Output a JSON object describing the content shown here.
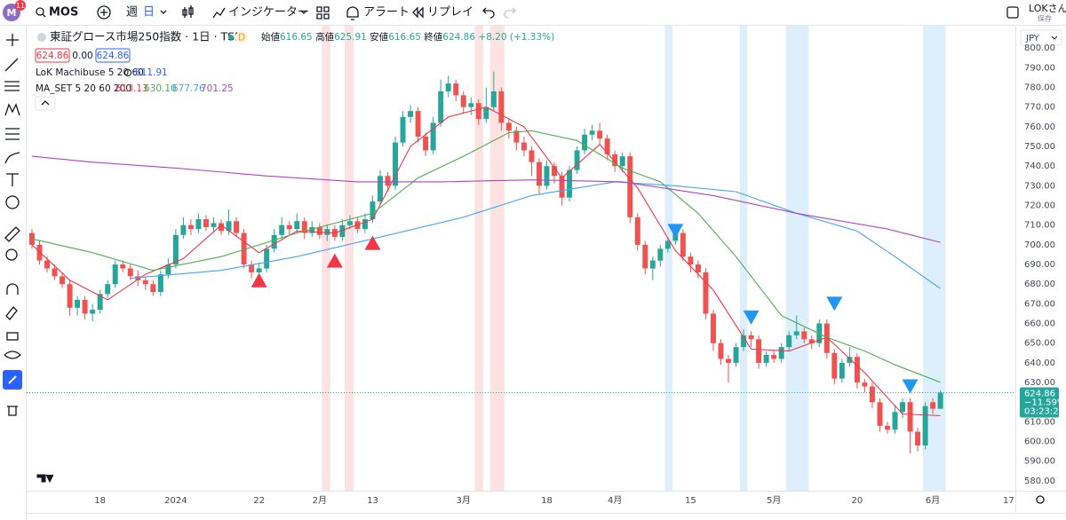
{
  "toolbar": {
    "badge": "11",
    "symbol": "MOS",
    "interval_week": "週",
    "interval_day": "日",
    "indicators": "インジケーター",
    "alert": "アラート",
    "replay": "リプレイ",
    "user": "LOKさん",
    "save": "保存"
  },
  "legend": {
    "title": "東証グロース市場250指数 · 1日 · TSE",
    "flag": "D",
    "ohlc": [
      {
        "label": "始値",
        "value": "616.65"
      },
      {
        "label": "高値",
        "value": "625.91"
      },
      {
        "label": "安値",
        "value": "616.65"
      },
      {
        "label": "終値",
        "value": "624.86"
      }
    ],
    "change": "+8.20 (+1.33%)",
    "boxes": [
      "624.86",
      "0.00",
      "624.86"
    ],
    "indicator1": "LoK Machibuse 5 20 60",
    "indicator1_value": "611.91",
    "indicator2": "MA_SET 5 20 60 200",
    "indicator2_values": [
      "613.13",
      "630.10",
      "677.76",
      "701.25"
    ]
  },
  "price_axis": {
    "currency": "JPY",
    "price": "624.86",
    "change": "−11.59%",
    "countdown": "03:23:20"
  },
  "chart_data": {
    "type": "candlestick",
    "up_color": "#26a69a",
    "down_color": "#ef5350",
    "grid": false,
    "xlim": [
      -0.7,
      129.9
    ],
    "xticks": [
      {
        "value": 9,
        "label": "18"
      },
      {
        "value": 19,
        "label": "2024"
      },
      {
        "value": 30,
        "label": "22"
      },
      {
        "value": 38,
        "label": "2月"
      },
      {
        "value": 45,
        "label": "13"
      },
      {
        "value": 57,
        "label": "3月"
      },
      {
        "value": 68,
        "label": "18"
      },
      {
        "value": 77,
        "label": "4月"
      },
      {
        "value": 87,
        "label": "15"
      },
      {
        "value": 98,
        "label": "5月"
      },
      {
        "value": 109,
        "label": "20"
      },
      {
        "value": 119,
        "label": "6月"
      },
      {
        "value": 129,
        "label": "17"
      }
    ],
    "ylim": [
      575,
      810
    ],
    "yticks": [
      {
        "value": 580,
        "label": "580.00"
      },
      {
        "value": 590,
        "label": "590.00"
      },
      {
        "value": 600,
        "label": "600.00"
      },
      {
        "value": 610,
        "label": "610.00"
      },
      {
        "value": 620,
        "label": "620.00"
      },
      {
        "value": 630,
        "label": "630.00"
      },
      {
        "value": 640,
        "label": "640.00"
      },
      {
        "value": 650,
        "label": "650.00"
      },
      {
        "value": 660,
        "label": "660.00"
      },
      {
        "value": 670,
        "label": "670.00"
      },
      {
        "value": 680,
        "label": "680.00"
      },
      {
        "value": 690,
        "label": "690.00"
      },
      {
        "value": 700,
        "label": "700.00"
      },
      {
        "value": 710,
        "label": "710.00"
      },
      {
        "value": 720,
        "label": "720.00"
      },
      {
        "value": 730,
        "label": "730.00"
      },
      {
        "value": 740,
        "label": "740.00"
      },
      {
        "value": 750,
        "label": "750.00"
      },
      {
        "value": 760,
        "label": "760.00"
      },
      {
        "value": 770,
        "label": "770.00"
      },
      {
        "value": 780,
        "label": "780.00"
      },
      {
        "value": 790,
        "label": "790.00"
      },
      {
        "value": 800,
        "label": "800.00"
      }
    ],
    "open": [
      706,
      700,
      692,
      688,
      684,
      680,
      668,
      672,
      665,
      667,
      675,
      680,
      690,
      688,
      684,
      682,
      680,
      676,
      685,
      690,
      705,
      710,
      708,
      713,
      709,
      711,
      707,
      712,
      706,
      690,
      686,
      688,
      698,
      705,
      710,
      708,
      712,
      706,
      709,
      705,
      708,
      704,
      710,
      712,
      708,
      713,
      722,
      735,
      730,
      752,
      765,
      768,
      755,
      748,
      762,
      778,
      782,
      776,
      770,
      772,
      764,
      770,
      778,
      762,
      758,
      752,
      748,
      742,
      730,
      740,
      735,
      724,
      738,
      748,
      756,
      758,
      754,
      746,
      740,
      745,
      714,
      700,
      688,
      692,
      698,
      702,
      706,
      694,
      690,
      686,
      665,
      650,
      642,
      640,
      648,
      654,
      652,
      640,
      644,
      642,
      648,
      654,
      656,
      652,
      650,
      660,
      645,
      632,
      640,
      643,
      630,
      628,
      620,
      608,
      606,
      615,
      620,
      605,
      598,
      620,
      616.65
    ],
    "high": [
      708,
      702,
      694,
      690,
      686,
      682,
      674,
      674,
      670,
      677,
      682,
      692,
      692,
      690,
      687,
      684,
      682,
      687,
      693,
      708,
      714,
      713,
      716,
      715,
      714,
      713,
      718,
      714,
      708,
      692,
      691,
      700,
      708,
      714,
      712,
      716,
      714,
      712,
      711,
      710,
      710,
      713,
      715,
      714,
      716,
      725,
      738,
      737,
      755,
      768,
      771,
      770,
      757,
      765,
      784,
      786,
      784,
      778,
      775,
      774,
      780,
      788,
      780,
      764,
      760,
      755,
      750,
      744,
      743,
      742,
      737,
      740,
      750,
      759,
      761,
      762,
      756,
      748,
      747,
      747,
      716,
      702,
      694,
      700,
      704,
      708,
      708,
      696,
      692,
      688,
      667,
      652,
      644,
      650,
      657,
      656,
      654,
      646,
      646,
      650,
      656,
      664,
      658,
      654,
      662,
      662,
      647,
      642,
      648,
      645,
      632,
      630,
      622,
      610,
      618,
      622,
      622,
      607,
      620,
      622,
      625.91
    ],
    "low": [
      698,
      690,
      686,
      682,
      678,
      664,
      664,
      662,
      661,
      665,
      673,
      678,
      686,
      682,
      679,
      677,
      674,
      674,
      683,
      688,
      703,
      705,
      706,
      707,
      706,
      705,
      705,
      704,
      688,
      683,
      684,
      686,
      696,
      703,
      705,
      706,
      703,
      704,
      703,
      702,
      702,
      702,
      708,
      706,
      706,
      711,
      720,
      727,
      728,
      750,
      762,
      752,
      745,
      746,
      760,
      775,
      773,
      767,
      766,
      761,
      762,
      768,
      758,
      754,
      748,
      745,
      735,
      726,
      728,
      731,
      720,
      722,
      736,
      746,
      753,
      751,
      743,
      737,
      737,
      711,
      697,
      685,
      682,
      689,
      696,
      700,
      692,
      686,
      683,
      662,
      646,
      639,
      630,
      638,
      646,
      648,
      637,
      638,
      640,
      640,
      646,
      652,
      650,
      647,
      648,
      642,
      629,
      630,
      638,
      627,
      625,
      617,
      605,
      604,
      604,
      612,
      594,
      595,
      596,
      614,
      616.65
    ],
    "close": [
      700,
      692,
      688,
      684,
      680,
      668,
      672,
      665,
      667,
      675,
      680,
      690,
      688,
      684,
      682,
      680,
      676,
      685,
      690,
      705,
      710,
      708,
      713,
      709,
      711,
      707,
      712,
      706,
      690,
      686,
      688,
      698,
      705,
      710,
      708,
      712,
      706,
      709,
      705,
      708,
      704,
      710,
      712,
      708,
      713,
      722,
      735,
      730,
      752,
      765,
      768,
      755,
      748,
      762,
      778,
      782,
      776,
      770,
      772,
      764,
      770,
      778,
      762,
      758,
      752,
      748,
      742,
      730,
      740,
      735,
      724,
      738,
      748,
      756,
      758,
      754,
      746,
      740,
      745,
      714,
      700,
      688,
      692,
      698,
      702,
      706,
      694,
      690,
      686,
      665,
      650,
      642,
      640,
      648,
      654,
      652,
      640,
      644,
      642,
      648,
      654,
      656,
      652,
      650,
      660,
      645,
      632,
      640,
      643,
      630,
      628,
      620,
      608,
      606,
      615,
      620,
      605,
      598,
      618,
      616.66,
      624.86
    ],
    "series": [
      {
        "color": "#f23645",
        "x": [
          0,
          5,
          10,
          15,
          20,
          25,
          30,
          35,
          40,
          45,
          50,
          55,
          60,
          65,
          70,
          75,
          80,
          85,
          90,
          95,
          100,
          105,
          110,
          115,
          120
        ],
        "values": [
          700,
          682,
          672,
          685,
          693,
          710,
          696,
          707,
          706,
          713,
          750,
          765,
          770,
          760,
          734,
          751,
          729,
          697,
          677,
          647,
          646,
          653,
          635,
          614,
          613.13
        ]
      },
      {
        "color": "#4caf50",
        "x": [
          0,
          8,
          16,
          25,
          35,
          45,
          51,
          57,
          63,
          66,
          72,
          78,
          83,
          88,
          93,
          99,
          105,
          110,
          114,
          120
        ],
        "values": [
          703,
          696,
          687,
          694,
          706,
          716,
          734,
          745,
          757,
          758,
          753,
          739,
          732,
          716,
          694,
          664,
          653,
          646,
          639,
          630.1
        ]
      },
      {
        "color": "#42a5f5",
        "x": [
          13,
          25,
          35,
          45,
          57,
          66,
          77,
          85,
          93,
          101,
          109,
          114,
          120
        ],
        "values": [
          683,
          687,
          694,
          703,
          714,
          725,
          732,
          730,
          727,
          716,
          707,
          694,
          677.76
        ]
      },
      {
        "color": "#ab47bc",
        "x": [
          0,
          8,
          19,
          31,
          43,
          54,
          66,
          78,
          90,
          101,
          113,
          120
        ],
        "values": [
          745,
          742,
          739,
          735,
          732,
          732,
          733,
          732,
          725,
          716,
          708,
          701.25
        ]
      }
    ],
    "highlight_bands": [
      {
        "start": 38.3,
        "end": 39.4,
        "color": "#fde2e2"
      },
      {
        "start": 41.3,
        "end": 42.5,
        "color": "#fde2e2"
      },
      {
        "start": 58.5,
        "end": 59.6,
        "color": "#fde2e2"
      },
      {
        "start": 60.5,
        "end": 62.4,
        "color": "#fde2e2"
      },
      {
        "start": 83.6,
        "end": 84.6,
        "color": "#ddeefc"
      },
      {
        "start": 93.5,
        "end": 94.5,
        "color": "#ddeefc"
      },
      {
        "start": 99.6,
        "end": 102.6,
        "color": "#ddeefc"
      },
      {
        "start": 117.7,
        "end": 120.7,
        "color": "#ddeefc"
      }
    ],
    "signals": [
      {
        "kind": "buy",
        "index": 30,
        "price": 682,
        "color": "#f23645"
      },
      {
        "kind": "buy",
        "index": 40,
        "price": 692,
        "color": "#f23645"
      },
      {
        "kind": "buy",
        "index": 45,
        "price": 701,
        "color": "#f23645"
      },
      {
        "kind": "sell",
        "index": 85,
        "price": 707,
        "color": "#2196f3"
      },
      {
        "kind": "sell",
        "index": 95,
        "price": 663,
        "color": "#2196f3"
      },
      {
        "kind": "sell",
        "index": 106,
        "price": 670,
        "color": "#2196f3"
      },
      {
        "kind": "sell",
        "index": 116,
        "price": 628,
        "color": "#2196f3"
      }
    ]
  }
}
